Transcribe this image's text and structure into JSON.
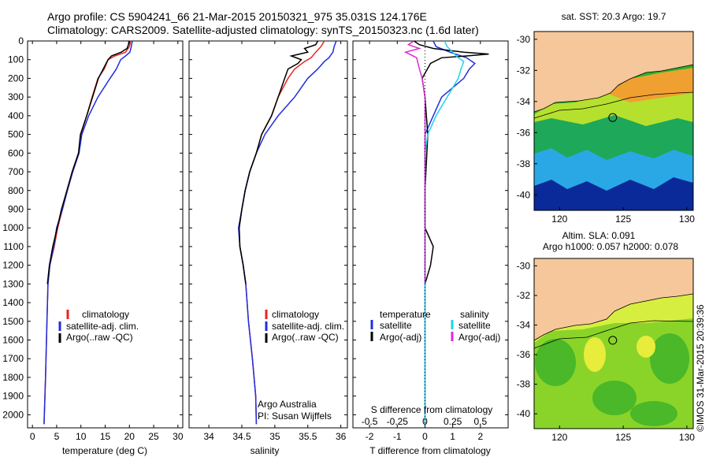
{
  "header": {
    "line1": "Argo profile: CS 5904241_66 21-Mar-2015 20150321_975 35.031S 124.176E",
    "line2": "Climatology: CARS2009. Satellite-adjusted climatology: synTS_20150323.nc (1.6d later)"
  },
  "colors": {
    "clim": "#e8251f",
    "sat": "#1f2fe0",
    "argo": "#000000",
    "sal_sat": "#22d3e6",
    "sal_argo": "#e028d8",
    "land": "#f6c79b"
  },
  "credit": "©IMOS 31-Mar-2015 20:39:36",
  "chart_data": [
    {
      "type": "line",
      "xlabel": "temperature (deg C)",
      "xlim": [
        -1,
        31
      ],
      "xticks": [
        0,
        5,
        10,
        15,
        20,
        25,
        30
      ],
      "ylim": [
        2070,
        0
      ],
      "yticks": [
        0,
        100,
        200,
        300,
        400,
        500,
        600,
        700,
        800,
        900,
        1000,
        1100,
        1200,
        1300,
        1400,
        1500,
        1600,
        1700,
        1800,
        1900,
        2000
      ],
      "legend": [
        "climatology",
        "satellite-adj. clim.",
        "Argo(..raw -QC)"
      ],
      "series": [
        {
          "name": "climatology",
          "color": "clim",
          "points": [
            [
              20.3,
              0
            ],
            [
              20,
              30
            ],
            [
              19.2,
              60
            ],
            [
              17,
              80
            ],
            [
              15.6,
              100
            ],
            [
              14.8,
              150
            ],
            [
              13.5,
              200
            ],
            [
              12.3,
              300
            ],
            [
              11.2,
              400
            ],
            [
              10,
              500
            ],
            [
              9.6,
              600
            ],
            [
              8.3,
              700
            ],
            [
              7.2,
              800
            ],
            [
              6.2,
              900
            ],
            [
              5.2,
              1000
            ],
            [
              4.5,
              1100
            ],
            [
              3.6,
              1200
            ],
            [
              3.2,
              1300
            ],
            [
              3,
              1500
            ],
            [
              2.7,
              1800
            ],
            [
              2.4,
              2050
            ]
          ]
        },
        {
          "name": "satellite-adj. clim.",
          "color": "sat",
          "points": [
            [
              20.6,
              0
            ],
            [
              20.4,
              30
            ],
            [
              20.1,
              60
            ],
            [
              19.2,
              80
            ],
            [
              18.2,
              100
            ],
            [
              17.3,
              150
            ],
            [
              16,
              200
            ],
            [
              13.5,
              300
            ],
            [
              11.6,
              400
            ],
            [
              10.2,
              500
            ],
            [
              9.6,
              600
            ],
            [
              8.3,
              700
            ],
            [
              7.2,
              800
            ],
            [
              6.2,
              900
            ],
            [
              5,
              1000
            ],
            [
              4.4,
              1100
            ],
            [
              3.6,
              1200
            ],
            [
              3.2,
              1300
            ],
            [
              3,
              1500
            ],
            [
              2.7,
              1800
            ],
            [
              2.4,
              2050
            ]
          ]
        },
        {
          "name": "Argo(..raw -QC)",
          "color": "argo",
          "points": [
            [
              19.9,
              0
            ],
            [
              19.8,
              20
            ],
            [
              19.5,
              40
            ],
            [
              18.3,
              60
            ],
            [
              16.3,
              80
            ],
            [
              15.6,
              100
            ],
            [
              14.6,
              150
            ],
            [
              13.6,
              200
            ],
            [
              12.4,
              300
            ],
            [
              11.2,
              400
            ],
            [
              9.9,
              500
            ],
            [
              9.5,
              600
            ],
            [
              8.2,
              700
            ],
            [
              7.1,
              800
            ],
            [
              6,
              900
            ],
            [
              5.1,
              1000
            ],
            [
              4.2,
              1100
            ],
            [
              3.5,
              1200
            ],
            [
              3.1,
              1300
            ]
          ]
        }
      ]
    },
    {
      "type": "line",
      "xlabel": "salinity",
      "xlim": [
        33.7,
        36.1
      ],
      "xticks": [
        34,
        34.5,
        35,
        35.5,
        36
      ],
      "ylim": [
        2070,
        0
      ],
      "legend": [
        "climatology",
        "satellite-adj. clim.",
        "Argo(..raw -QC)"
      ],
      "annotation": [
        "Argo Australia",
        "PI: Susan Wijffels"
      ],
      "series": [
        {
          "name": "climatology",
          "color": "clim",
          "points": [
            [
              35.75,
              0
            ],
            [
              35.7,
              30
            ],
            [
              35.62,
              60
            ],
            [
              35.55,
              90
            ],
            [
              35.45,
              110
            ],
            [
              35.3,
              150
            ],
            [
              35.2,
              200
            ],
            [
              35.05,
              300
            ],
            [
              34.95,
              400
            ],
            [
              34.8,
              500
            ],
            [
              34.72,
              600
            ],
            [
              34.62,
              700
            ],
            [
              34.55,
              800
            ],
            [
              34.5,
              900
            ],
            [
              34.46,
              1000
            ],
            [
              34.47,
              1100
            ],
            [
              34.52,
              1200
            ],
            [
              34.56,
              1300
            ],
            [
              34.6,
              1500
            ],
            [
              34.66,
              1700
            ],
            [
              34.71,
              1900
            ],
            [
              34.72,
              2050
            ]
          ]
        },
        {
          "name": "satellite-adj. clim.",
          "color": "sat",
          "points": [
            [
              35.93,
              0
            ],
            [
              35.9,
              30
            ],
            [
              35.88,
              60
            ],
            [
              35.82,
              90
            ],
            [
              35.75,
              110
            ],
            [
              35.65,
              150
            ],
            [
              35.5,
              200
            ],
            [
              35.3,
              300
            ],
            [
              35.05,
              400
            ],
            [
              34.85,
              500
            ],
            [
              34.72,
              600
            ],
            [
              34.62,
              700
            ],
            [
              34.55,
              800
            ],
            [
              34.5,
              900
            ],
            [
              34.45,
              1000
            ],
            [
              34.47,
              1100
            ],
            [
              34.52,
              1200
            ],
            [
              34.56,
              1300
            ],
            [
              34.6,
              1500
            ],
            [
              34.66,
              1700
            ],
            [
              34.71,
              1900
            ],
            [
              34.72,
              2050
            ]
          ]
        },
        {
          "name": "Argo(..raw -QC)",
          "color": "argo",
          "points": [
            [
              35.65,
              0
            ],
            [
              35.62,
              20
            ],
            [
              35.45,
              40
            ],
            [
              35.5,
              60
            ],
            [
              35.25,
              80
            ],
            [
              35.4,
              100
            ],
            [
              35.35,
              120
            ],
            [
              35.2,
              150
            ],
            [
              35.15,
              200
            ],
            [
              35.05,
              300
            ],
            [
              34.95,
              400
            ],
            [
              34.8,
              500
            ],
            [
              34.72,
              600
            ],
            [
              34.62,
              700
            ],
            [
              34.55,
              800
            ],
            [
              34.5,
              900
            ],
            [
              34.46,
              1000
            ],
            [
              34.47,
              1100
            ],
            [
              34.52,
              1200
            ],
            [
              34.56,
              1300
            ]
          ]
        }
      ]
    },
    {
      "type": "line",
      "xlabel": "T difference from climatology",
      "xlabel_top": "S difference from climatology",
      "xlim": [
        -2.6,
        3
      ],
      "xticks": [
        -2,
        -1,
        0,
        1,
        2
      ],
      "top_ticks": [
        [
          -2,
          "-0.5"
        ],
        [
          -1,
          "-0.25"
        ],
        [
          0,
          "0"
        ],
        [
          1,
          "0.25"
        ],
        [
          2,
          "0.5"
        ]
      ],
      "ylim": [
        2070,
        0
      ],
      "legend_left_title": "temperature",
      "legend_left": [
        "satellite",
        "Argo(-adj)"
      ],
      "legend_right_title": "salinity",
      "legend_right": [
        "satellite",
        "Argo(-adj)"
      ],
      "series": [
        {
          "name": "temperature satellite",
          "color": "sat",
          "points": [
            [
              0.3,
              0
            ],
            [
              0.4,
              30
            ],
            [
              0.9,
              60
            ],
            [
              1.5,
              90
            ],
            [
              1.8,
              120
            ],
            [
              1.6,
              150
            ],
            [
              1.4,
              200
            ],
            [
              0.6,
              300
            ],
            [
              0.3,
              400
            ],
            [
              0,
              500
            ],
            [
              0,
              600
            ],
            [
              0,
              800
            ],
            [
              0,
              1200
            ],
            [
              0,
              2050
            ]
          ]
        },
        {
          "name": "temperature Argo(-adj)",
          "color": "argo",
          "points": [
            [
              -0.4,
              0
            ],
            [
              -0.2,
              20
            ],
            [
              0.3,
              40
            ],
            [
              1.4,
              60
            ],
            [
              2.3,
              70
            ],
            [
              1.5,
              80
            ],
            [
              0.6,
              90
            ],
            [
              0.2,
              120
            ],
            [
              -0.1,
              200
            ],
            [
              0,
              300
            ],
            [
              0.1,
              500
            ],
            [
              0,
              800
            ],
            [
              0,
              1000
            ],
            [
              0.3,
              1100
            ],
            [
              0.2,
              1200
            ],
            [
              0,
              1300
            ]
          ]
        },
        {
          "name": "salinity satellite",
          "color": "sal_sat",
          "points": [
            [
              0.7,
              0
            ],
            [
              0.8,
              30
            ],
            [
              1,
              60
            ],
            [
              1.2,
              90
            ],
            [
              1.4,
              110
            ],
            [
              1.3,
              150
            ],
            [
              1.2,
              200
            ],
            [
              0.8,
              300
            ],
            [
              0.4,
              400
            ],
            [
              0.1,
              500
            ],
            [
              0,
              600
            ],
            [
              0,
              1000
            ],
            [
              0,
              2050
            ]
          ]
        },
        {
          "name": "salinity Argo(-adj)",
          "color": "sal_argo",
          "points": [
            [
              -0.4,
              0
            ],
            [
              -0.6,
              20
            ],
            [
              -0.2,
              40
            ],
            [
              -0.7,
              60
            ],
            [
              -0.3,
              90
            ],
            [
              -0.2,
              150
            ],
            [
              -0.1,
              200
            ],
            [
              0,
              300
            ],
            [
              0,
              500
            ],
            [
              0,
              1000
            ],
            [
              0,
              1300
            ]
          ]
        }
      ]
    },
    {
      "type": "heatmap",
      "title": "sat. SST: 20.3 Argo: 19.7",
      "xlim": [
        118,
        130.5
      ],
      "ylim": [
        -41,
        -29.5
      ],
      "xticks": [
        120,
        125,
        130
      ],
      "yticks": [
        -30,
        -32,
        -34,
        -36,
        -38,
        -40
      ],
      "marker": [
        124.176,
        -35.031
      ]
    },
    {
      "type": "heatmap",
      "title": "Altim. SLA: 0.091",
      "subtitle": "Argo h1000: 0.057 h2000: 0.078",
      "xlim": [
        118,
        130.5
      ],
      "ylim": [
        -41,
        -29.5
      ],
      "xticks": [
        120,
        125,
        130
      ],
      "yticks": [
        -30,
        -32,
        -34,
        -36,
        -38,
        -40
      ],
      "marker": [
        124.176,
        -35.031
      ]
    }
  ]
}
